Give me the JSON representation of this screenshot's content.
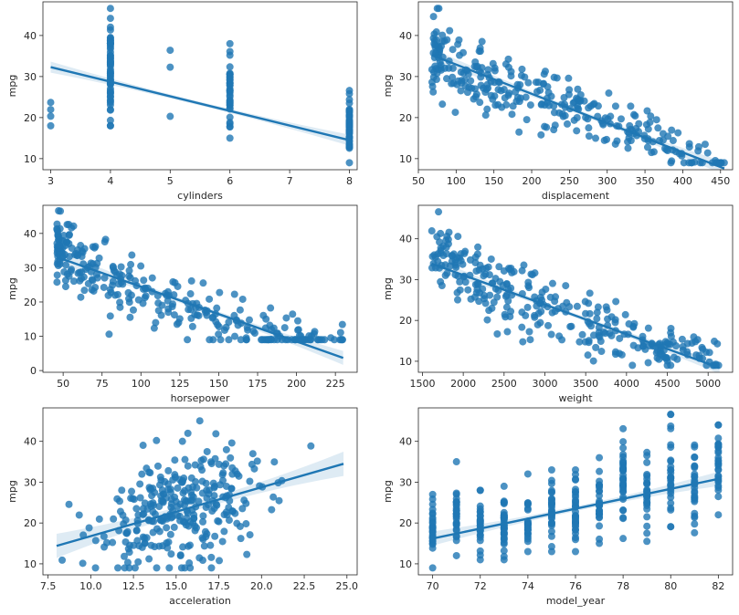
{
  "colors": {
    "point": "#1f77b4",
    "line": "#1f77b4",
    "band": "#1f77b4",
    "text": "#262626",
    "axes": "#262626"
  },
  "chart_data": [
    {
      "type": "scatter",
      "xlabel": "cylinders",
      "ylabel": "mpg",
      "xlim": [
        2.87,
        8.13
      ],
      "ylim": [
        7.3,
        48.2
      ],
      "xticks": [
        3,
        4,
        5,
        6,
        7,
        8
      ],
      "yticks": [
        10,
        20,
        30,
        40
      ],
      "xtick_labels": [
        "3",
        "4",
        "5",
        "6",
        "7",
        "8"
      ],
      "ytick_labels": [
        "10",
        "20",
        "30",
        "40"
      ],
      "regression": {
        "x0": 3,
        "y0": 32.3,
        "x1": 8,
        "y1": 14.5
      },
      "ci_width": 1.0,
      "gen": {
        "kind": "discrete",
        "levels": [
          {
            "x": 3,
            "ymin": 18,
            "ymax": 23.7,
            "n": 4,
            "jitter": 0
          },
          {
            "x": 4,
            "ymin": 18,
            "ymax": 46.6,
            "n": 60,
            "jitter": 0
          },
          {
            "x": 5,
            "ymin": 20.3,
            "ymax": 36.4,
            "n": 3,
            "jitter": 0
          },
          {
            "x": 6,
            "ymin": 15,
            "ymax": 38,
            "n": 40,
            "jitter": 0
          },
          {
            "x": 8,
            "ymin": 9,
            "ymax": 26.6,
            "n": 50,
            "jitter": 0
          }
        ]
      }
    },
    {
      "type": "scatter",
      "xlabel": "displacement",
      "ylabel": "mpg",
      "xlim": [
        50,
        466
      ],
      "ylim": [
        7.3,
        48.2
      ],
      "xticks": [
        50,
        100,
        150,
        200,
        250,
        300,
        350,
        400,
        450
      ],
      "yticks": [
        10,
        20,
        30,
        40
      ],
      "xtick_labels": [
        "50",
        "100",
        "150",
        "200",
        "250",
        "300",
        "350",
        "400",
        "450"
      ],
      "ytick_labels": [
        "10",
        "20",
        "30",
        "40"
      ],
      "regression": {
        "x0": 68,
        "y0": 35.2,
        "x1": 455,
        "y1": 7.6
      },
      "ci_width": 1.2,
      "gen": {
        "kind": "continuous",
        "seed": 11,
        "n": 300,
        "xmin": 68,
        "xmax": 455,
        "noise": 4.2,
        "ymin": 9,
        "ymax": 46.6,
        "skew": 1.4
      }
    },
    {
      "type": "scatter",
      "xlabel": "horsepower",
      "ylabel": "mpg",
      "xlim": [
        37,
        239
      ],
      "ylim": [
        -0.5,
        48.2
      ],
      "xticks": [
        50,
        75,
        100,
        125,
        150,
        175,
        200,
        225
      ],
      "yticks": [
        0,
        10,
        20,
        30,
        40
      ],
      "xtick_labels": [
        "50",
        "75",
        "100",
        "125",
        "150",
        "175",
        "200",
        "225"
      ],
      "ytick_labels": [
        "0",
        "10",
        "20",
        "30",
        "40"
      ],
      "regression": {
        "x0": 46,
        "y0": 33.1,
        "x1": 230,
        "y1": 3.7
      },
      "ci_width": 1.5,
      "gen": {
        "kind": "continuous",
        "seed": 23,
        "n": 300,
        "xmin": 46,
        "xmax": 230,
        "noise": 4.5,
        "ymin": 9,
        "ymax": 46.6,
        "skew": 1.8,
        "curve": 6
      }
    },
    {
      "type": "scatter",
      "xlabel": "weight",
      "ylabel": "mpg",
      "xlim": [
        1450,
        5300
      ],
      "ylim": [
        7.3,
        48.2
      ],
      "xticks": [
        1500,
        2000,
        2500,
        3000,
        3500,
        4000,
        4500,
        5000
      ],
      "yticks": [
        10,
        20,
        30,
        40
      ],
      "xtick_labels": [
        "1500",
        "2000",
        "2500",
        "3000",
        "3500",
        "4000",
        "4500",
        "5000"
      ],
      "ytick_labels": [
        "10",
        "20",
        "30",
        "40"
      ],
      "regression": {
        "x0": 1613,
        "y0": 33.9,
        "x1": 5140,
        "y1": 8.4
      },
      "ci_width": 1.1,
      "gen": {
        "kind": "continuous",
        "seed": 37,
        "n": 300,
        "xmin": 1613,
        "xmax": 5140,
        "noise": 4.3,
        "ymin": 9,
        "ymax": 46.6,
        "skew": 1.3,
        "curve": 4
      }
    },
    {
      "type": "scatter",
      "xlabel": "acceleration",
      "ylabel": "mpg",
      "xlim": [
        7.2,
        25.6
      ],
      "ylim": [
        7.3,
        48.2
      ],
      "xticks": [
        7.5,
        10.0,
        12.5,
        15.0,
        17.5,
        20.0,
        22.5,
        25.0
      ],
      "yticks": [
        10,
        20,
        30,
        40
      ],
      "xtick_labels": [
        "7.5",
        "10.0",
        "12.5",
        "15.0",
        "17.5",
        "20.0",
        "22.5",
        "25.0"
      ],
      "ytick_labels": [
        "10",
        "20",
        "30",
        "40"
      ],
      "regression": {
        "x0": 8,
        "y0": 14.4,
        "x1": 24.8,
        "y1": 34.5
      },
      "ci_width": 2.2,
      "gen": {
        "kind": "continuous",
        "seed": 53,
        "n": 300,
        "xmin": 8,
        "xmax": 24.8,
        "noise": 7.5,
        "ymin": 9,
        "ymax": 46.6,
        "center": 15.5,
        "spread": 2.7
      }
    },
    {
      "type": "scatter",
      "xlabel": "model_year",
      "ylabel": "mpg",
      "xlim": [
        69.4,
        82.6
      ],
      "ylim": [
        7.3,
        48.2
      ],
      "xticks": [
        70,
        72,
        74,
        76,
        78,
        80,
        82
      ],
      "yticks": [
        10,
        20,
        30,
        40
      ],
      "xtick_labels": [
        "70",
        "72",
        "74",
        "76",
        "78",
        "80",
        "82"
      ],
      "ytick_labels": [
        "10",
        "20",
        "30",
        "40"
      ],
      "regression": {
        "x0": 70,
        "y0": 16.2,
        "x1": 82,
        "y1": 30.8
      },
      "ci_width": 1.3,
      "gen": {
        "kind": "discrete",
        "levels": [
          {
            "x": 70,
            "ymin": 9,
            "ymax": 27,
            "n": 29
          },
          {
            "x": 71,
            "ymin": 12,
            "ymax": 35,
            "n": 28
          },
          {
            "x": 72,
            "ymin": 11,
            "ymax": 28,
            "n": 28
          },
          {
            "x": 73,
            "ymin": 11,
            "ymax": 29,
            "n": 40
          },
          {
            "x": 74,
            "ymin": 13,
            "ymax": 32,
            "n": 27
          },
          {
            "x": 75,
            "ymin": 13,
            "ymax": 33,
            "n": 30
          },
          {
            "x": 76,
            "ymin": 13,
            "ymax": 33,
            "n": 34
          },
          {
            "x": 77,
            "ymin": 15,
            "ymax": 36,
            "n": 28
          },
          {
            "x": 78,
            "ymin": 16.2,
            "ymax": 43.1,
            "n": 36
          },
          {
            "x": 79,
            "ymin": 15.5,
            "ymax": 37.3,
            "n": 29
          },
          {
            "x": 80,
            "ymin": 19.1,
            "ymax": 46.6,
            "n": 29
          },
          {
            "x": 81,
            "ymin": 17.6,
            "ymax": 39.1,
            "n": 28
          },
          {
            "x": 82,
            "ymin": 22,
            "ymax": 44,
            "n": 30
          }
        ]
      }
    }
  ]
}
